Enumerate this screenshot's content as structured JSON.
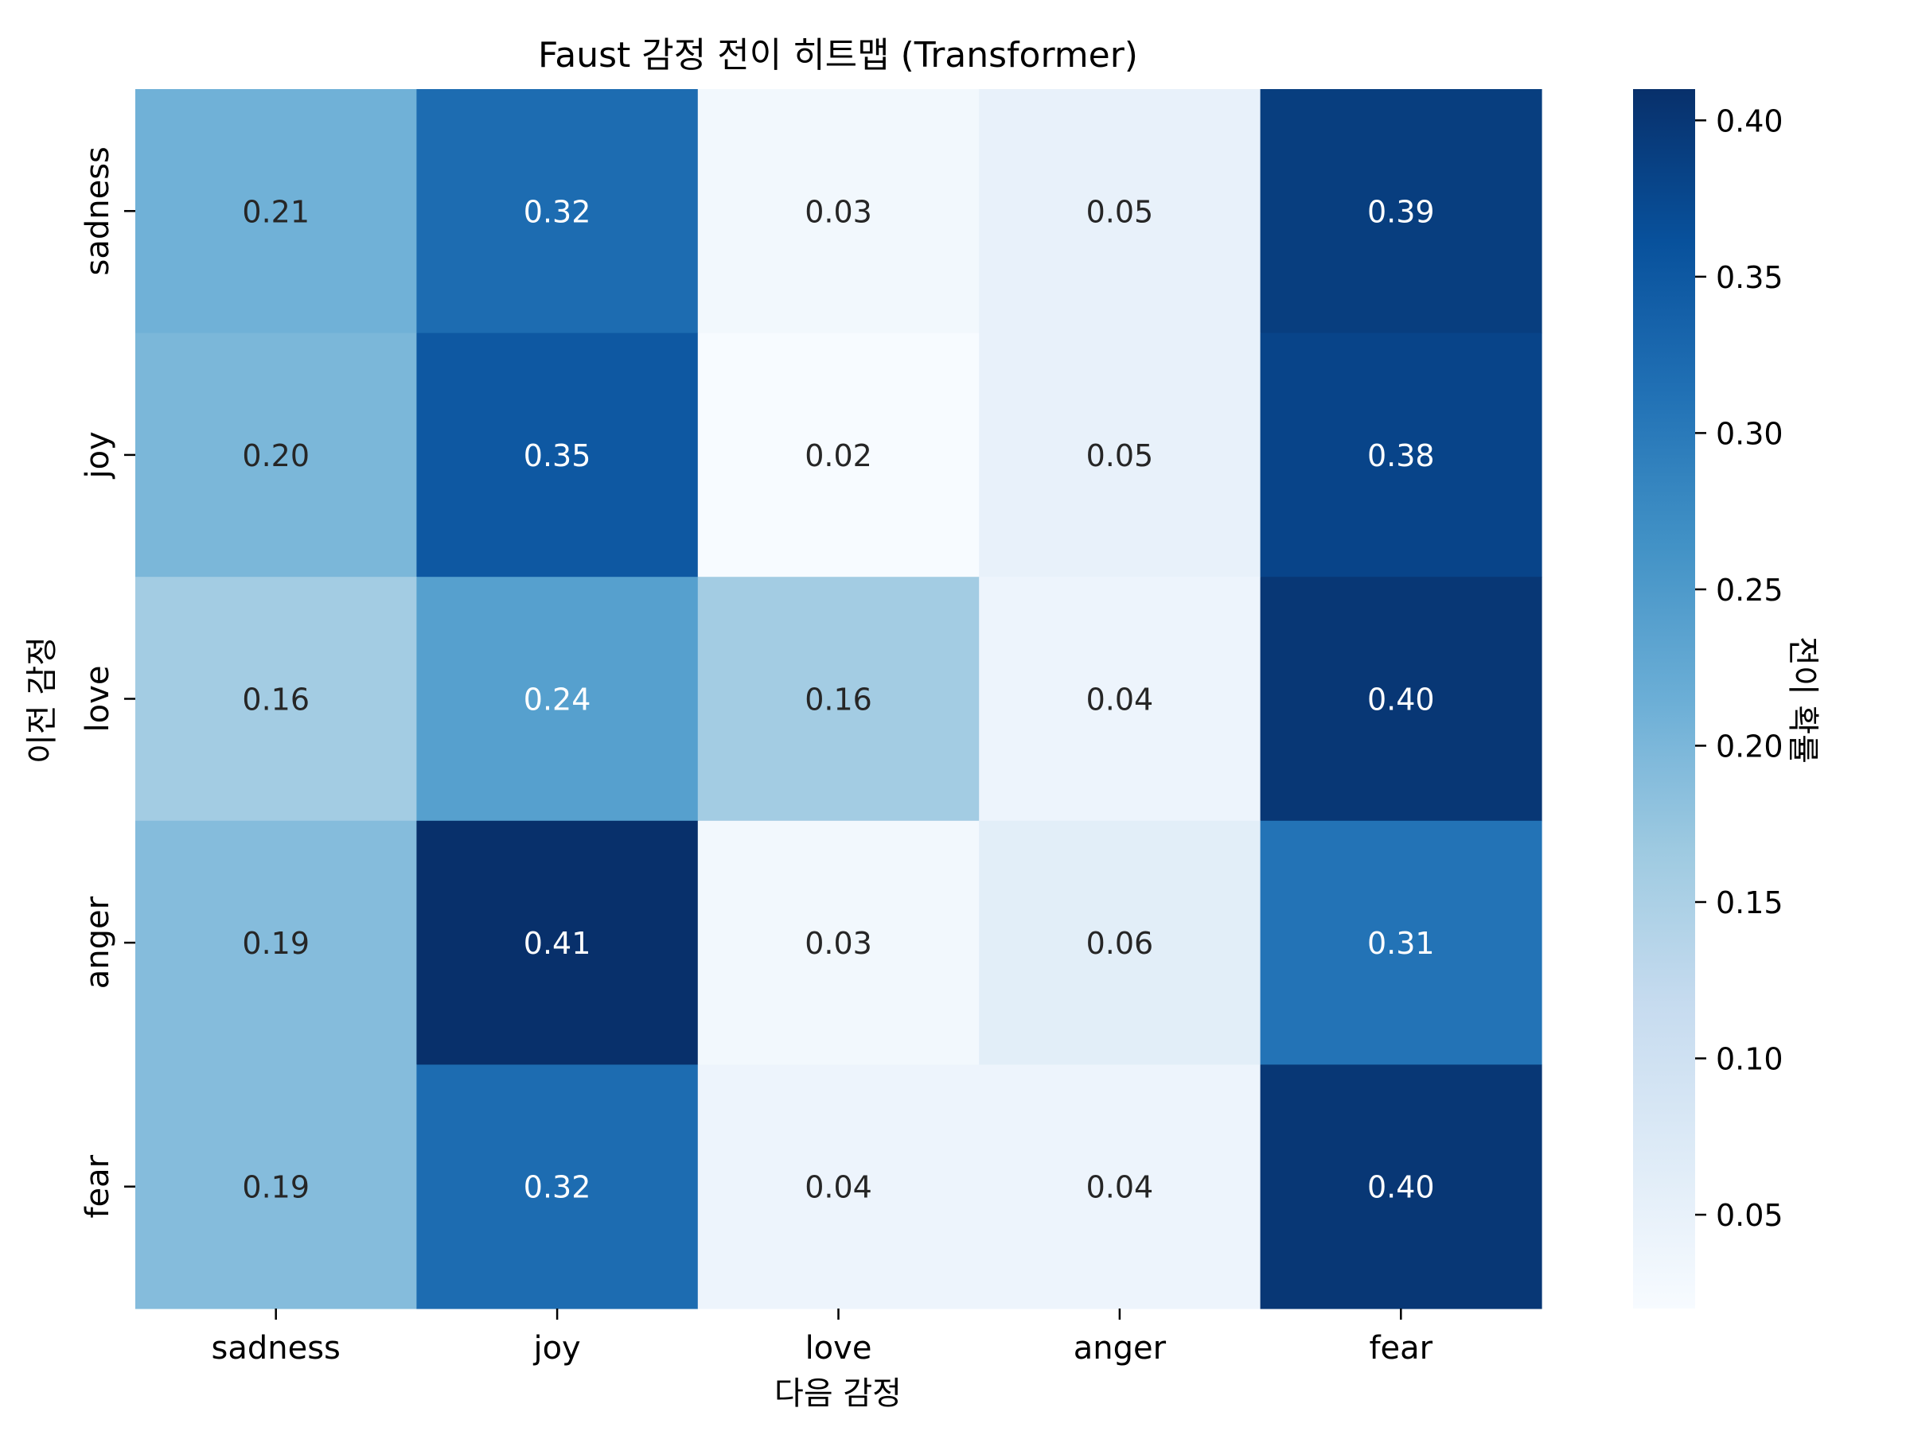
{
  "chart_data": {
    "type": "heatmap",
    "title": "Faust 감정 전이 히트맵 (Transformer)",
    "xlabel": "다음 감정",
    "ylabel": "이전 감정",
    "x_categories": [
      "sadness",
      "joy",
      "love",
      "anger",
      "fear"
    ],
    "y_categories": [
      "sadness",
      "joy",
      "love",
      "anger",
      "fear"
    ],
    "values": [
      [
        0.21,
        0.32,
        0.03,
        0.05,
        0.39
      ],
      [
        0.2,
        0.35,
        0.02,
        0.05,
        0.38
      ],
      [
        0.16,
        0.24,
        0.16,
        0.04,
        0.4
      ],
      [
        0.19,
        0.41,
        0.03,
        0.06,
        0.31
      ],
      [
        0.19,
        0.32,
        0.04,
        0.04,
        0.4
      ]
    ],
    "colorbar": {
      "label": "전이 확률",
      "min": 0.02,
      "max": 0.41,
      "ticks": [
        0.05,
        0.1,
        0.15,
        0.2,
        0.25,
        0.3,
        0.35,
        0.4
      ],
      "colormap": "Blues"
    }
  }
}
